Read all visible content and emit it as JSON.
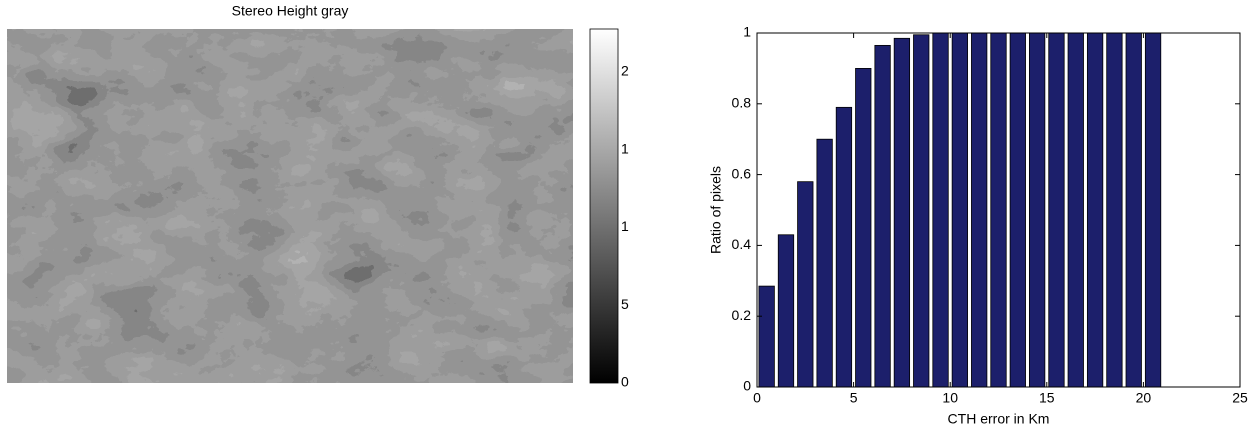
{
  "chart_data": [
    {
      "type": "image",
      "title": "Stereo Height gray",
      "colorbar_labels": [
        "2",
        "1",
        "1",
        "5",
        "0"
      ]
    },
    {
      "type": "bar",
      "x": [
        0.5,
        1.5,
        2.5,
        3.5,
        4.5,
        5.5,
        6.5,
        7.5,
        8.5,
        9.5,
        10.5,
        11.5,
        12.5,
        13.5,
        14.5,
        15.5,
        16.5,
        17.5,
        18.5,
        19.5,
        20.5
      ],
      "values": [
        0.285,
        0.43,
        0.58,
        0.7,
        0.79,
        0.9,
        0.965,
        0.985,
        0.995,
        1,
        1,
        1,
        1,
        1,
        1,
        1,
        1,
        1,
        1,
        1,
        1
      ],
      "color": "#1c1f6b",
      "xlabel": "CTH error in Km",
      "ylabel": "Ratio of pixels",
      "xlim": [
        0,
        25
      ],
      "xticks": [
        0,
        5,
        10,
        15,
        20,
        25
      ],
      "ylim": [
        0,
        1
      ],
      "yticks": [
        0,
        0.2,
        0.4,
        0.6,
        0.8,
        1
      ],
      "grid": false
    }
  ]
}
